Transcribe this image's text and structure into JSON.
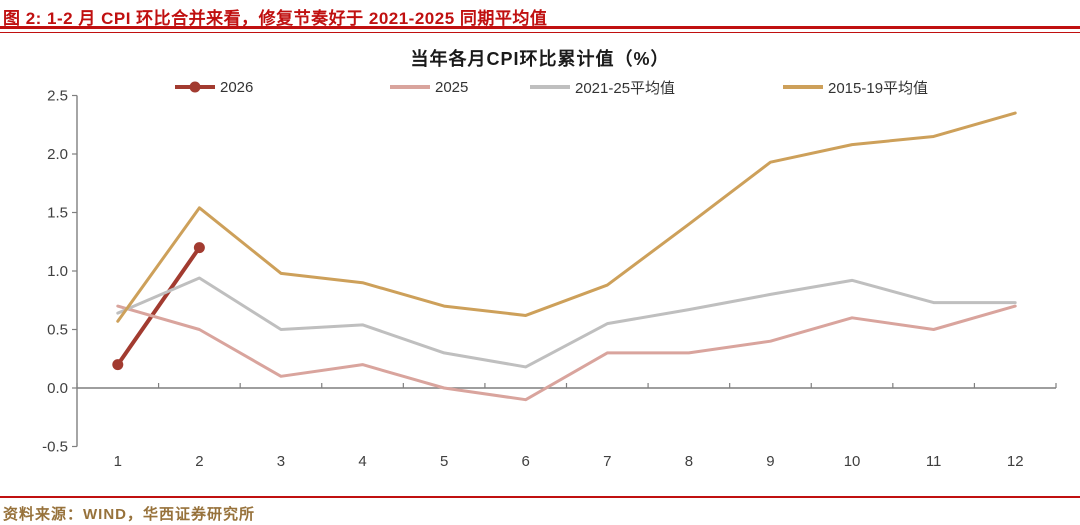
{
  "header": {
    "title": "图 2: 1-2 月 CPI 环比合并来看，修复节奏好于 2021-2025 同期平均值"
  },
  "footer": {
    "source": "资料来源：WIND，华西证券研究所"
  },
  "colors": {
    "header_red": "#C01010",
    "source_brown": "#97723B",
    "axis_line": "#7F7F7F",
    "tick_label": "#404040"
  },
  "chart_data": {
    "type": "line",
    "title": "当年各月CPI环比累计值（%）",
    "xlabel": "",
    "ylabel": "",
    "categories": [
      1,
      2,
      3,
      4,
      5,
      6,
      7,
      8,
      9,
      10,
      11,
      12
    ],
    "ylim": [
      -0.5,
      2.5
    ],
    "yticks": [
      2.5,
      2.0,
      1.5,
      1.0,
      0.5,
      0.0,
      -0.5
    ],
    "grid": false,
    "legend_position": "top",
    "series": [
      {
        "name": "2026",
        "color": "#A23B30",
        "marker": "circle",
        "line_width": 4,
        "values": [
          0.2,
          1.2,
          null,
          null,
          null,
          null,
          null,
          null,
          null,
          null,
          null,
          null
        ]
      },
      {
        "name": "2025",
        "color": "#D9A49D",
        "marker": "none",
        "line_width": 3,
        "values": [
          0.7,
          0.5,
          0.1,
          0.2,
          0.0,
          -0.1,
          0.3,
          0.3,
          0.4,
          0.6,
          0.5,
          0.7
        ]
      },
      {
        "name": "2021-25平均值",
        "color": "#BFBFBF",
        "marker": "none",
        "line_width": 3,
        "values": [
          0.64,
          0.94,
          0.5,
          0.54,
          0.3,
          0.18,
          0.55,
          0.67,
          0.8,
          0.92,
          0.73,
          0.73
        ]
      },
      {
        "name": "2015-19平均值",
        "color": "#CDA05A",
        "marker": "none",
        "line_width": 3,
        "values": [
          0.57,
          1.54,
          0.98,
          0.9,
          0.7,
          0.62,
          0.88,
          1.4,
          1.93,
          2.08,
          2.15,
          2.35
        ]
      }
    ]
  }
}
